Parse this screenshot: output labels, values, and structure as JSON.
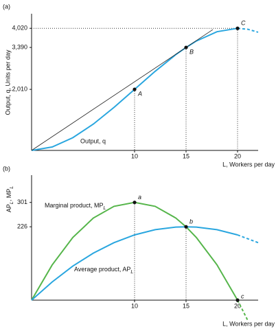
{
  "chart_data": [
    {
      "type": "line",
      "panel": "(a)",
      "y_label": "Output, q, Units per day",
      "x_label": "L, Workers per day",
      "xlim": [
        0,
        23
      ],
      "ylim": [
        0,
        4500
      ],
      "xticks": [
        10,
        15,
        20
      ],
      "yticks": [
        {
          "value": 2010,
          "label": "2,010"
        },
        {
          "value": 3390,
          "label": "3,390"
        },
        {
          "value": 4020,
          "label": "4,020"
        }
      ],
      "dashed_after_x": 20,
      "series": [
        {
          "name": "Output, q",
          "color": "#29a6df",
          "x": [
            0,
            2,
            4,
            6,
            8,
            10,
            12,
            14,
            15,
            16,
            18,
            20,
            21,
            22
          ],
          "values": [
            0,
            113,
            418,
            868,
            1415,
            2010,
            2605,
            3152,
            3390,
            3602,
            3907,
            4020,
            3989,
            3891
          ]
        },
        {
          "color": "#222222",
          "x": [
            0,
            17.6
          ],
          "values": [
            0,
            3978
          ]
        }
      ],
      "points": [
        {
          "label": "A",
          "x": 10,
          "y": 2010
        },
        {
          "label": "B",
          "x": 15,
          "y": 3390
        },
        {
          "label": "C",
          "x": 20,
          "y": 4020
        }
      ],
      "horizontal_guides": [
        2
      ]
    },
    {
      "type": "line",
      "panel": "(b)",
      "y_label": [
        "AP",
        "L",
        ", MP",
        "L"
      ],
      "x_label": "L, Workers per day",
      "xlim": [
        0,
        23
      ],
      "ylim": [
        0,
        385
      ],
      "xticks": [
        10,
        15,
        20
      ],
      "yticks": [
        226,
        301
      ],
      "dashed_after_x": 20,
      "series": [
        {
          "name": [
            "Marginal product, MP",
            "L"
          ],
          "color": "#55b54a",
          "x": [
            0,
            2,
            4,
            6,
            8,
            10,
            12,
            14,
            15,
            16,
            18,
            20,
            21
          ],
          "values": [
            0,
            108.5,
            193,
            253,
            289,
            301,
            289,
            253,
            226,
            193,
            109,
            0,
            -63
          ]
        },
        {
          "name": [
            "Average product, AP",
            "L"
          ],
          "color": "#29a6df",
          "x": [
            0,
            2,
            4,
            6,
            8,
            10,
            12,
            14,
            15,
            16,
            18,
            20,
            22
          ],
          "values": [
            0,
            56,
            105,
            145,
            177,
            201,
            217,
            225,
            226,
            225,
            217,
            201,
            177
          ]
        }
      ],
      "points": [
        {
          "label": "a",
          "x": 10,
          "y": 301
        },
        {
          "label": "b",
          "x": 15,
          "y": 226
        },
        {
          "label": "c",
          "x": 20,
          "y": 0
        }
      ],
      "horizontal_guides": []
    }
  ]
}
